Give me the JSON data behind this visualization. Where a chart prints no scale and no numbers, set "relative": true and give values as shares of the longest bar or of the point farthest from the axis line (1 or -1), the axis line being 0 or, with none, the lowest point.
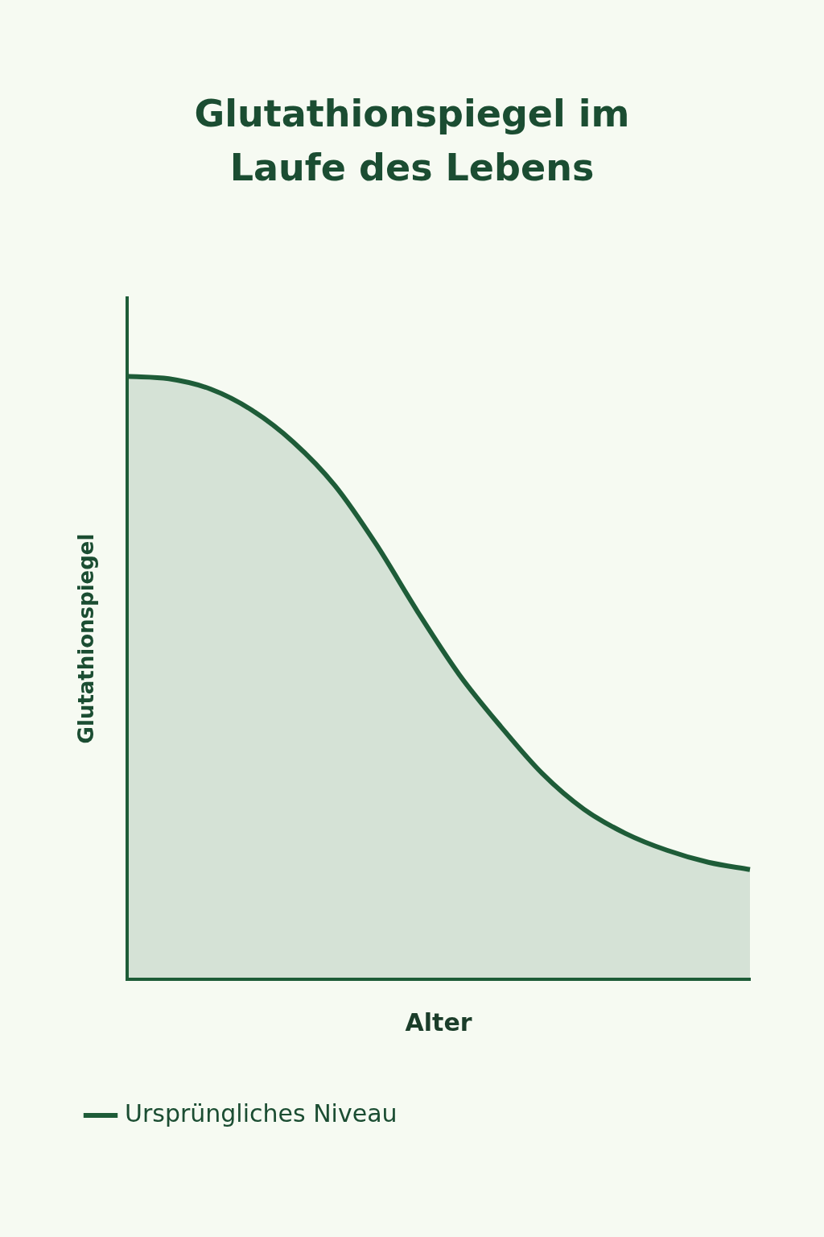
{
  "chart_data": {
    "type": "area",
    "title": "Glutathionspiegel im Laufe des Lebens",
    "xlabel": "Alter",
    "ylabel": "Glutathionspiegel",
    "relative": true,
    "categories": [
      null,
      null,
      null,
      null,
      null,
      null,
      null,
      null,
      null,
      null,
      null,
      null,
      null,
      null,
      null,
      null
    ],
    "series": [
      {
        "name": "Ursprüngliches Niveau",
        "color": "#1e5c38",
        "values": [
          1,
          0.996,
          0.979,
          0.944,
          0.891,
          0.819,
          0.721,
          0.609,
          0.505,
          0.419,
          0.341,
          0.282,
          0.242,
          0.214,
          0.194,
          0.182
        ]
      }
    ],
    "grid": false,
    "legend": "bottom",
    "marker": "none",
    "line_style": "solid"
  }
}
